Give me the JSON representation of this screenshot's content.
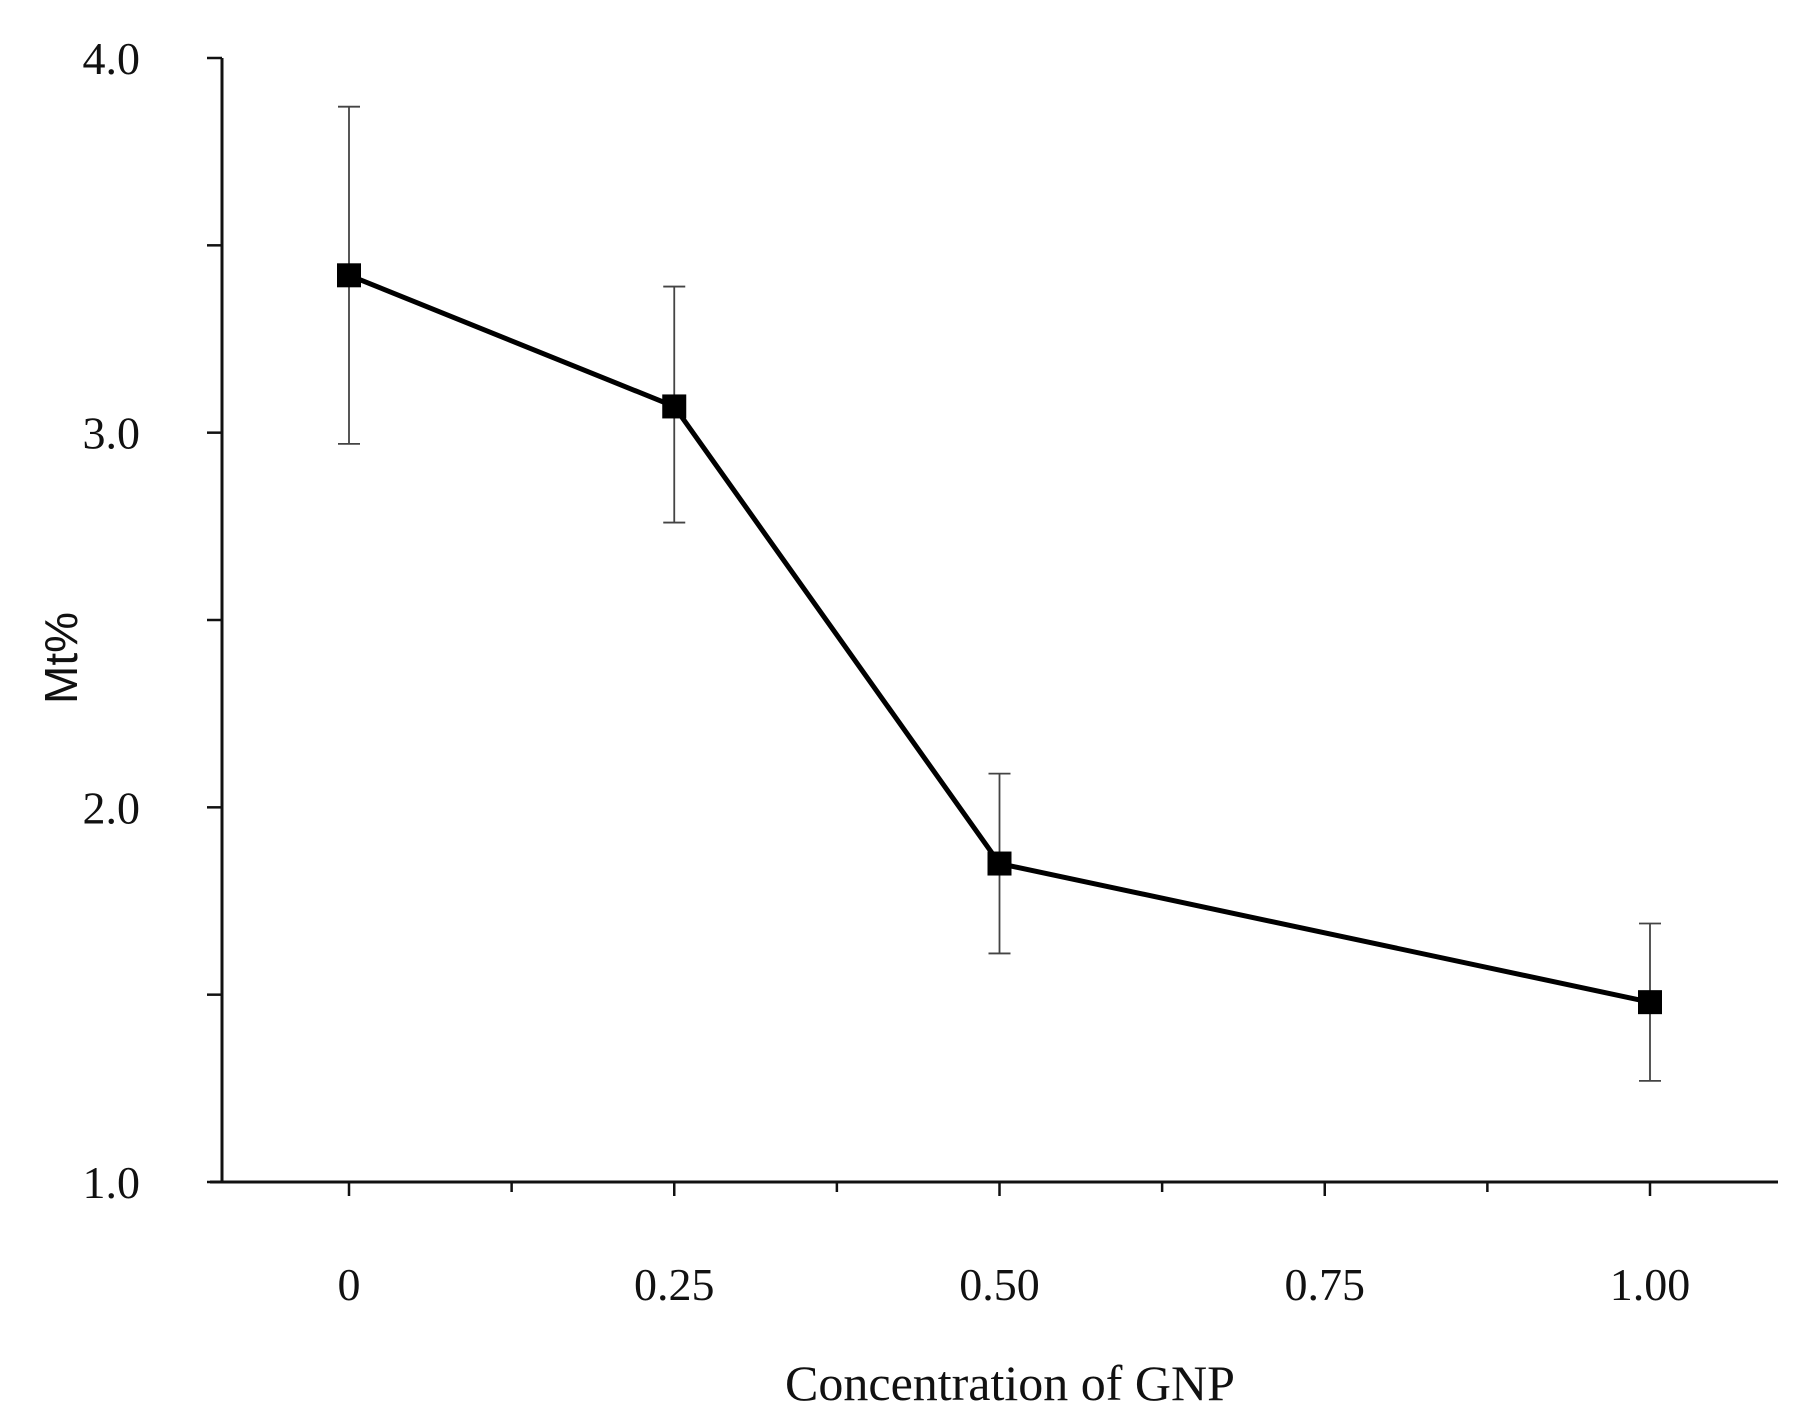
{
  "chart_data": {
    "type": "line",
    "title": "",
    "xlabel": "Concentration of GNP",
    "ylabel": "Mt%",
    "ylim": [
      1.0,
      4.0
    ],
    "y_tick_values": [
      1.0,
      1.5,
      2.0,
      2.5,
      3.0,
      3.5,
      4.0
    ],
    "y_tick_labels": [
      "1.0",
      "",
      "2.0",
      "",
      "3.0",
      "",
      "4.0"
    ],
    "x_tick_values": [
      0,
      0.25,
      0.5,
      0.75,
      1.0
    ],
    "x_tick_labels": [
      "0",
      "0.25",
      "0.50",
      "0.75",
      "1.00"
    ],
    "x_minor_ticks": [
      0.125,
      0.375,
      0.625,
      0.875
    ],
    "grid": false,
    "series": [
      {
        "name": "Mt%",
        "color": "#000000",
        "marker": "square",
        "x": [
          0,
          0.25,
          0.5,
          1.0
        ],
        "values": [
          3.42,
          3.07,
          1.85,
          1.48
        ],
        "error_upper": [
          3.87,
          3.39,
          2.09,
          1.69
        ],
        "error_lower": [
          2.97,
          2.76,
          1.61,
          1.27
        ]
      }
    ]
  }
}
